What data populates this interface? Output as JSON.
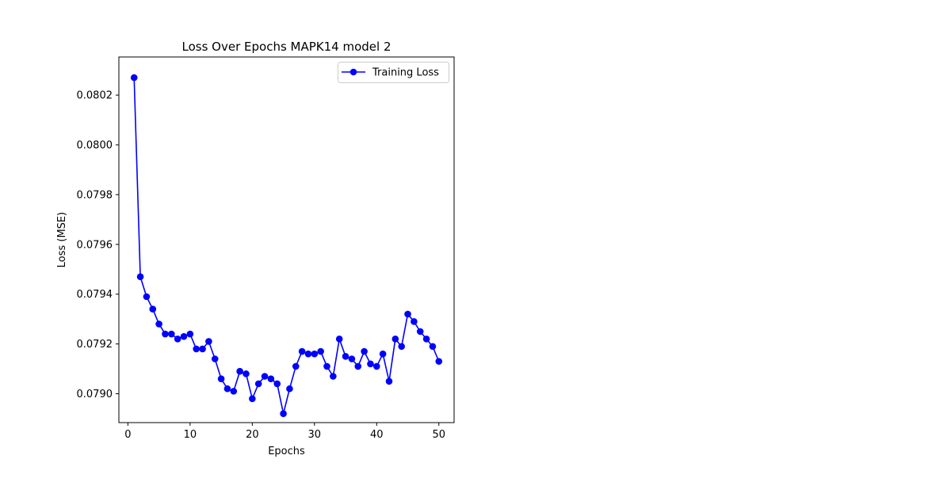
{
  "chart_data": {
    "type": "line",
    "title": "Loss Over Epochs MAPK14 model 2",
    "xlabel": "Epochs",
    "ylabel": "Loss (MSE)",
    "xlim": [
      -1.45,
      52.45
    ],
    "ylim": [
      0.078884,
      0.080353
    ],
    "xticks": [
      0,
      10,
      20,
      30,
      40,
      50
    ],
    "xtick_labels": [
      "0",
      "10",
      "20",
      "30",
      "40",
      "50"
    ],
    "yticks": [
      0.079,
      0.0792,
      0.0794,
      0.0796,
      0.0798,
      0.08,
      0.0802
    ],
    "ytick_labels": [
      "0.0790",
      "0.0792",
      "0.0794",
      "0.0796",
      "0.0798",
      "0.0800",
      "0.0802"
    ],
    "grid": false,
    "legend_position": "upper right",
    "series": [
      {
        "name": "Training Loss",
        "color": "#0000ff",
        "marker": "circle",
        "x": [
          1,
          2,
          3,
          4,
          5,
          6,
          7,
          8,
          9,
          10,
          11,
          12,
          13,
          14,
          15,
          16,
          17,
          18,
          19,
          20,
          21,
          22,
          23,
          24,
          25,
          26,
          27,
          28,
          29,
          30,
          31,
          32,
          33,
          34,
          35,
          36,
          37,
          38,
          39,
          40,
          41,
          42,
          43,
          44,
          45,
          46,
          47,
          48,
          49,
          50
        ],
        "values": [
          0.08027,
          0.07947,
          0.07939,
          0.07934,
          0.07928,
          0.07924,
          0.07924,
          0.07922,
          0.07923,
          0.07924,
          0.07918,
          0.07918,
          0.07921,
          0.07914,
          0.07906,
          0.07902,
          0.07901,
          0.07909,
          0.07908,
          0.07898,
          0.07904,
          0.07907,
          0.07906,
          0.07904,
          0.07892,
          0.07902,
          0.07911,
          0.07917,
          0.07916,
          0.07916,
          0.07917,
          0.07911,
          0.07907,
          0.07922,
          0.07915,
          0.07914,
          0.07911,
          0.07917,
          0.07912,
          0.07911,
          0.07916,
          0.07905,
          0.07922,
          0.07919,
          0.07932,
          0.07929,
          0.07925,
          0.07922,
          0.07919,
          0.07913
        ]
      }
    ]
  }
}
